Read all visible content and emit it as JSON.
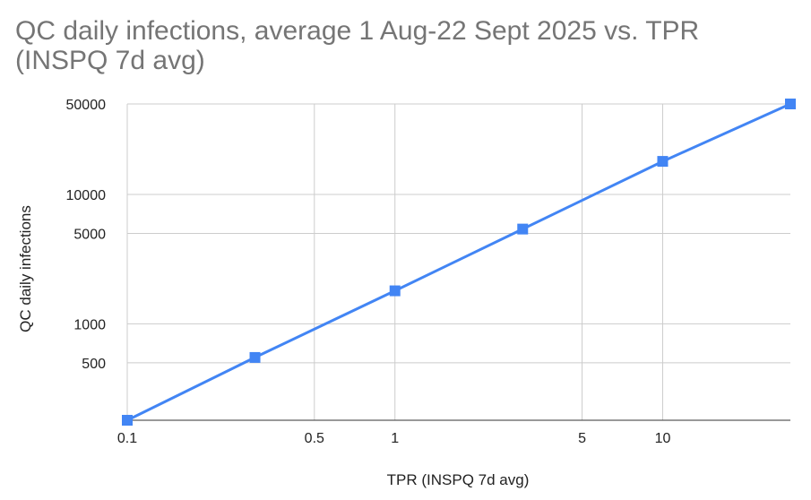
{
  "chart_data": {
    "type": "line",
    "title": "QC daily infections, average 1 Aug-22 Sept 2025 vs. TPR (INSPQ 7d avg)",
    "xlabel": "TPR (INSPQ 7d avg)",
    "ylabel": "QC daily infections",
    "x_scale": "log",
    "y_scale": "log",
    "xlim": [
      0.1,
      30
    ],
    "ylim": [
      180,
      50000
    ],
    "x_ticks": [
      0.1,
      0.5,
      1,
      5,
      10
    ],
    "x_tick_labels": [
      "0.1",
      "0.5",
      "1",
      "5",
      "10"
    ],
    "y_ticks": [
      500,
      1000,
      5000,
      10000,
      50000
    ],
    "y_tick_labels": [
      "500",
      "1000",
      "5000",
      "10000",
      "50000"
    ],
    "grid": true,
    "series": [
      {
        "color": "#4285f4",
        "marker": "square",
        "x": [
          0.1,
          0.3,
          1,
          3,
          10,
          30
        ],
        "y": [
          180,
          550,
          1800,
          5400,
          18000,
          50000
        ]
      }
    ]
  }
}
